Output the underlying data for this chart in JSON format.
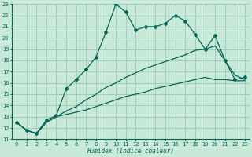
{
  "xlabel": "Humidex (Indice chaleur)",
  "xlim": [
    -0.5,
    23.5
  ],
  "ylim": [
    11,
    23
  ],
  "xticks": [
    0,
    1,
    2,
    3,
    4,
    5,
    6,
    7,
    8,
    9,
    10,
    11,
    12,
    13,
    14,
    15,
    16,
    17,
    18,
    19,
    20,
    21,
    22,
    23
  ],
  "yticks": [
    11,
    12,
    13,
    14,
    15,
    16,
    17,
    18,
    19,
    20,
    21,
    22,
    23
  ],
  "bg_color": "#c8e8d8",
  "grid_color": "#a0ccbc",
  "line_color": "#006655",
  "line1_x": [
    0,
    1,
    2,
    3,
    4,
    5,
    6,
    7,
    8,
    9,
    10,
    11,
    12,
    13,
    14,
    15,
    16,
    17,
    18,
    19,
    20,
    21,
    22,
    23
  ],
  "line1_y": [
    12.5,
    11.8,
    11.5,
    12.7,
    13.1,
    15.5,
    16.3,
    17.2,
    18.3,
    20.5,
    23.0,
    22.3,
    20.7,
    21.0,
    21.0,
    21.3,
    22.0,
    21.5,
    20.3,
    19.0,
    20.2,
    18.0,
    16.3,
    16.5
  ],
  "line2_x": [
    0,
    1,
    2,
    3,
    4,
    5,
    6,
    7,
    8,
    9,
    10,
    11,
    12,
    13,
    14,
    15,
    16,
    17,
    18,
    19,
    20,
    21,
    22,
    23
  ],
  "line2_y": [
    12.5,
    11.8,
    11.5,
    12.5,
    13.0,
    13.2,
    13.4,
    13.6,
    13.9,
    14.2,
    14.5,
    14.8,
    15.0,
    15.2,
    15.5,
    15.7,
    15.9,
    16.1,
    16.3,
    16.5,
    16.3,
    16.3,
    16.2,
    16.2
  ],
  "line3_x": [
    0,
    1,
    2,
    3,
    4,
    5,
    6,
    7,
    8,
    9,
    10,
    11,
    12,
    13,
    14,
    15,
    16,
    17,
    18,
    19,
    20,
    21,
    22,
    23
  ],
  "line3_y": [
    12.5,
    11.8,
    11.5,
    12.5,
    13.0,
    13.5,
    13.9,
    14.5,
    15.0,
    15.6,
    16.0,
    16.5,
    16.9,
    17.3,
    17.6,
    17.9,
    18.2,
    18.5,
    18.9,
    19.0,
    19.3,
    18.0,
    16.7,
    16.3
  ]
}
